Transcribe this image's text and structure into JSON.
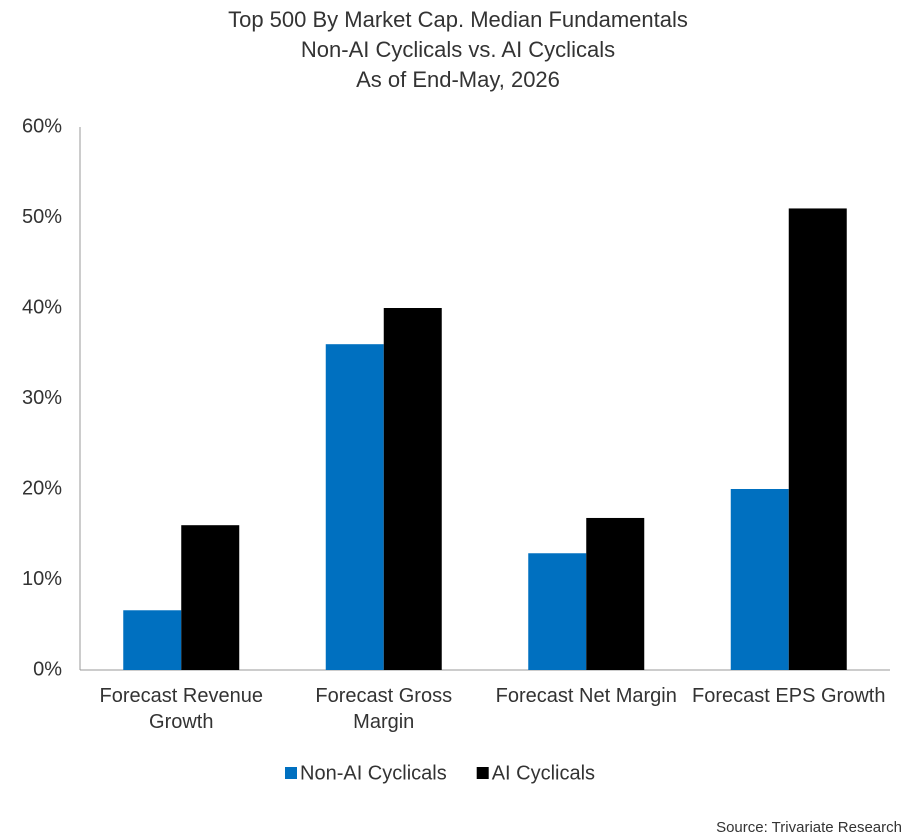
{
  "chart_data": {
    "type": "bar",
    "title": [
      "Top 500 By Market Cap. Median Fundamentals",
      "Non-AI Cyclicals vs. AI Cyclicals",
      "As of End-May, 2026"
    ],
    "categories": [
      "Forecast Revenue Growth",
      "Forecast Gross Margin",
      "Forecast Net Margin",
      "Forecast EPS Growth"
    ],
    "series": [
      {
        "name": "Non-AI Cyclicals",
        "color": "#0070c0",
        "values": [
          6.6,
          36,
          12.9,
          20
        ]
      },
      {
        "name": "AI Cyclicals",
        "color": "#000000",
        "values": [
          16,
          40,
          16.8,
          51
        ]
      }
    ],
    "ylim": [
      0,
      60
    ],
    "yticks": [
      {
        "value": 0,
        "label": "0%"
      },
      {
        "value": 10,
        "label": "10%"
      },
      {
        "value": 20,
        "label": "20%"
      },
      {
        "value": 30,
        "label": "30%"
      },
      {
        "value": 40,
        "label": "40%"
      },
      {
        "value": 50,
        "label": "50%"
      },
      {
        "value": 60,
        "label": "60%"
      }
    ],
    "grid": false,
    "legend": "bottom",
    "source": "Source: Trivariate Research"
  }
}
